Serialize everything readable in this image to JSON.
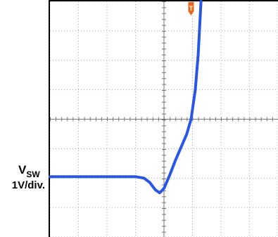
{
  "chart_data": {
    "type": "line",
    "y_label_main": "V",
    "y_label_sub": "SW",
    "y_label_scale": "1V/div.",
    "trigger_label": "T",
    "xlim": [
      0,
      8
    ],
    "ylim": [
      -4,
      4
    ],
    "xticks": [
      0,
      1,
      2,
      3,
      4,
      5,
      6,
      7,
      8
    ],
    "yticks": [
      -4,
      -3,
      -2,
      -1,
      0,
      1,
      2,
      3,
      4
    ],
    "grid": true,
    "trigger_x": 4.95,
    "series": [
      {
        "color": "#2a56e8",
        "x": [
          0,
          1,
          2,
          3,
          3.3,
          3.5,
          3.7,
          3.85,
          4.0,
          4.2,
          4.4,
          4.6,
          4.8,
          4.95,
          5.1,
          5.2,
          5.3
        ],
        "values": [
          -1.95,
          -1.95,
          -1.95,
          -1.95,
          -2.0,
          -2.15,
          -2.4,
          -2.5,
          -2.35,
          -1.9,
          -1.4,
          -0.95,
          -0.5,
          0,
          1.0,
          2.2,
          4.0
        ]
      }
    ]
  }
}
